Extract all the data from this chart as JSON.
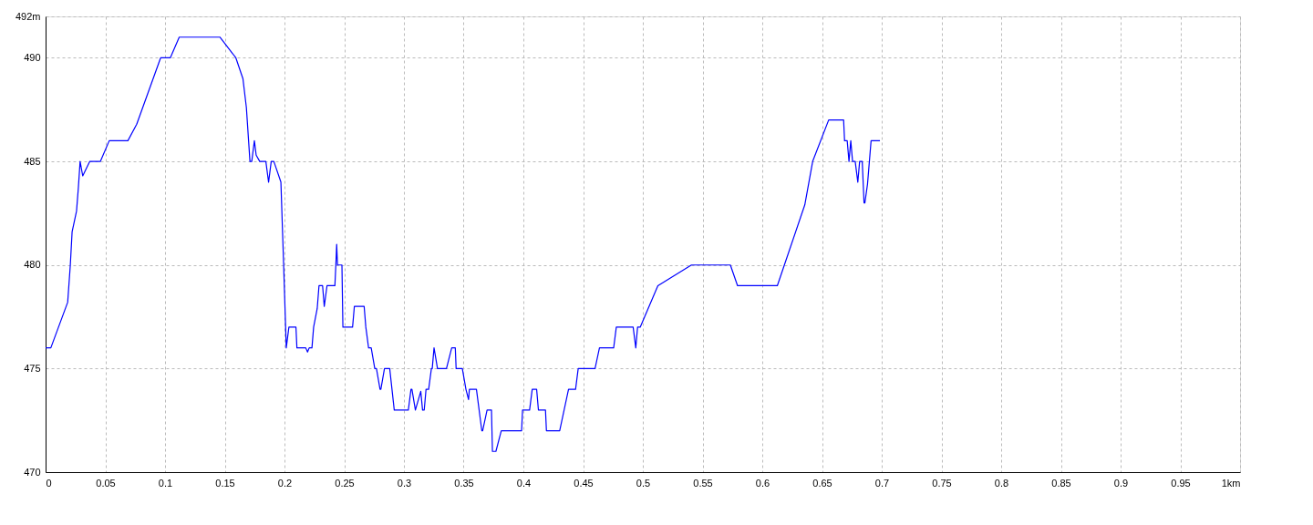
{
  "chart_data": {
    "type": "line",
    "x": [
      0,
      0.0044,
      0.0185,
      0.0207,
      0.0222,
      0.0259,
      0.0274,
      0.0289,
      0.0311,
      0.037,
      0.0459,
      0.0533,
      0.0689,
      0.0763,
      0.0963,
      0.1044,
      0.1119,
      0.1459,
      0.1593,
      0.1652,
      0.1681,
      0.1711,
      0.1726,
      0.1748,
      0.1763,
      0.1793,
      0.1844,
      0.1867,
      0.1889,
      0.1911,
      0.197,
      0.1993,
      0.2015,
      0.2037,
      0.2096,
      0.2104,
      0.2178,
      0.2193,
      0.2207,
      0.223,
      0.2244,
      0.2274,
      0.2289,
      0.2319,
      0.2333,
      0.2356,
      0.2422,
      0.243,
      0.2437,
      0.2444,
      0.2481,
      0.2489,
      0.257,
      0.2585,
      0.2667,
      0.2681,
      0.2704,
      0.2726,
      0.2756,
      0.277,
      0.28,
      0.2807,
      0.2837,
      0.2881,
      0.2919,
      0.3037,
      0.3059,
      0.3067,
      0.3096,
      0.3141,
      0.3156,
      0.317,
      0.3185,
      0.3207,
      0.323,
      0.3237,
      0.3252,
      0.3281,
      0.3356,
      0.34,
      0.343,
      0.3437,
      0.3489,
      0.3519,
      0.3541,
      0.3548,
      0.3607,
      0.3652,
      0.3659,
      0.3696,
      0.3733,
      0.3741,
      0.377,
      0.3815,
      0.3985,
      0.3993,
      0.4052,
      0.4074,
      0.4111,
      0.4126,
      0.4185,
      0.4193,
      0.4304,
      0.4378,
      0.4437,
      0.4459,
      0.46,
      0.4637,
      0.4756,
      0.4778,
      0.4919,
      0.4941,
      0.4956,
      0.4978,
      0.5126,
      0.5407,
      0.5733,
      0.5793,
      0.6126,
      0.6356,
      0.6422,
      0.6556,
      0.6681,
      0.6689,
      0.6711,
      0.6726,
      0.6741,
      0.6756,
      0.6778,
      0.68,
      0.6815,
      0.6837,
      0.6852,
      0.6859,
      0.6881,
      0.6911,
      0.6985
    ],
    "series": [
      {
        "color": "#0000ff",
        "values": [
          476,
          476,
          478.2,
          480,
          481.6,
          482.6,
          483.7,
          485,
          484.3,
          485,
          485,
          486,
          486,
          486.8,
          490,
          490,
          491,
          491,
          490,
          489,
          487.6,
          485,
          485,
          486,
          485.3,
          485,
          485,
          484,
          485,
          485,
          484,
          480,
          476,
          477,
          477,
          476,
          476,
          475.8,
          476,
          476,
          477,
          477.9,
          479,
          479,
          478,
          479,
          479,
          480,
          481,
          480,
          480,
          477,
          477,
          478,
          478,
          477,
          476,
          476,
          475,
          475,
          474,
          474,
          475,
          475,
          473,
          473,
          474,
          474,
          473,
          473.9,
          473,
          473,
          474,
          474,
          475,
          475,
          476,
          475,
          475,
          476,
          476,
          475,
          475,
          474,
          473.5,
          474,
          474,
          472,
          472,
          473,
          473,
          471,
          471,
          472,
          472,
          473,
          473,
          474,
          474,
          473,
          473,
          472,
          472,
          474,
          474,
          475,
          475,
          476,
          476,
          477,
          477,
          476,
          477,
          477,
          479,
          480,
          480,
          479,
          479,
          482.9,
          485,
          487,
          487,
          486,
          486,
          485,
          486,
          485,
          485,
          484,
          485,
          485,
          483,
          483,
          483.9,
          486,
          486
        ]
      }
    ],
    "xlim": [
      0,
      1
    ],
    "xticks": [
      0,
      0.05,
      0.1,
      0.15,
      0.2,
      0.25,
      0.3,
      0.35,
      0.4,
      0.45,
      0.5,
      0.55,
      0.6,
      0.65,
      0.7,
      0.75,
      0.8,
      0.85,
      0.9,
      0.95,
      {
        "value": 1,
        "label": "1km"
      }
    ],
    "ylim": [
      470,
      492
    ],
    "yticks": [
      470,
      475,
      480,
      485,
      490,
      {
        "value": 492,
        "label": "492m"
      }
    ],
    "grid": true
  }
}
